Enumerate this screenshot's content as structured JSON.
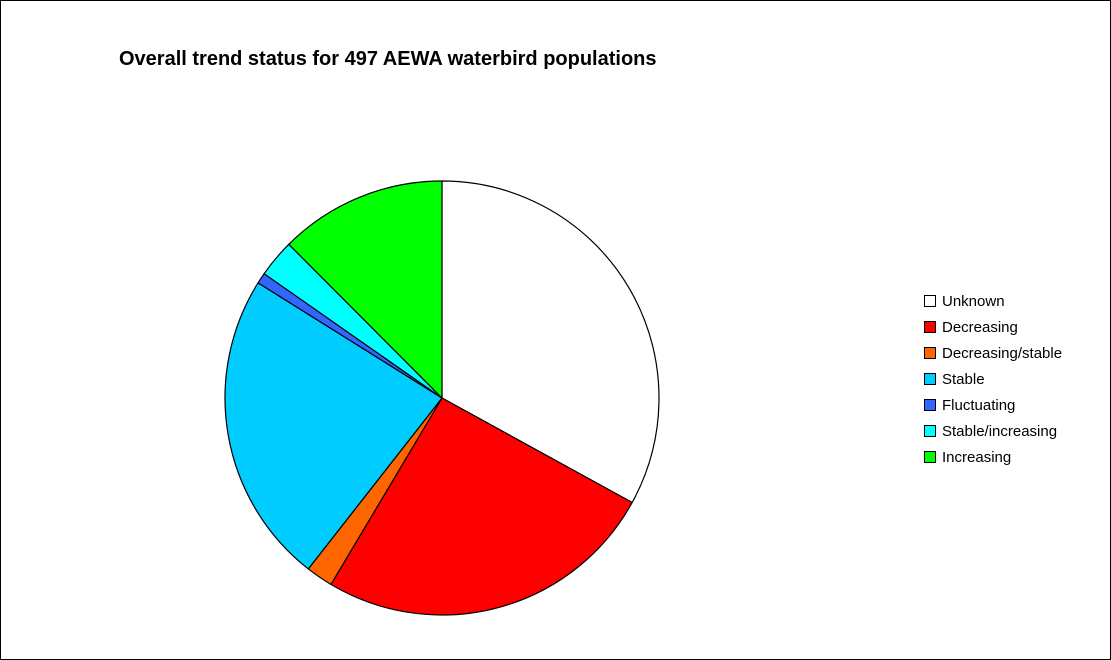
{
  "chart_data": {
    "type": "pie",
    "title": "Overall trend status for 497 AEWA waterbird populations",
    "legend_position": "right",
    "slices": [
      {
        "label": "Unknown",
        "value": 164,
        "color": "#FFFFFF"
      },
      {
        "label": "Decreasing",
        "value": 127,
        "color": "#FF0000"
      },
      {
        "label": "Decreasing/stable",
        "value": 10,
        "color": "#FF6600"
      },
      {
        "label": "Stable",
        "value": 116,
        "color": "#00CCFF"
      },
      {
        "label": "Fluctuating",
        "value": 4,
        "color": "#3366FF"
      },
      {
        "label": "Stable/increasing",
        "value": 14,
        "color": "#00FFFF"
      },
      {
        "label": "Increasing",
        "value": 62,
        "color": "#00FF00"
      }
    ]
  }
}
